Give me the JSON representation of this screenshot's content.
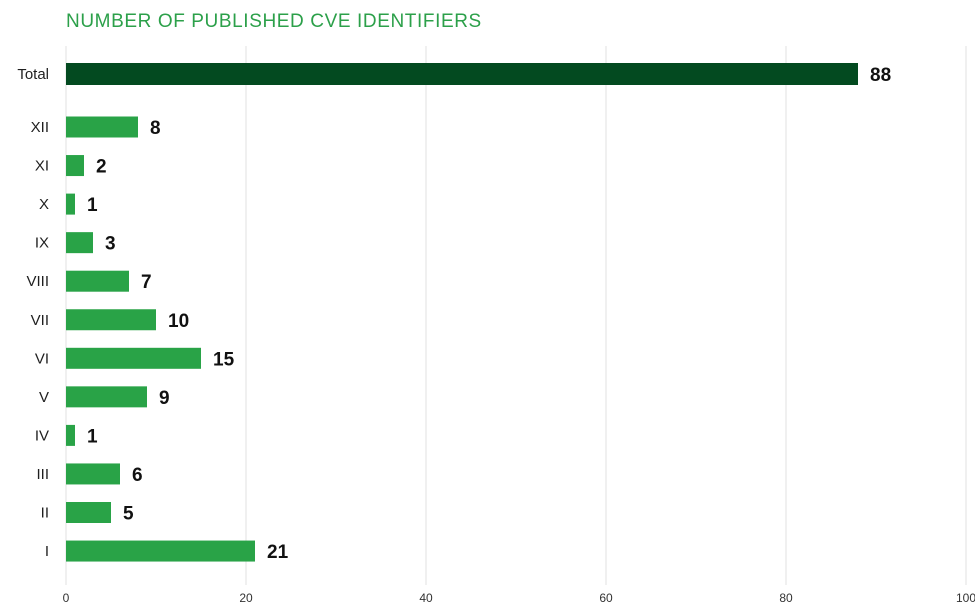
{
  "chart_data": {
    "type": "bar",
    "orientation": "horizontal",
    "title": "NUMBER OF PUBLISHED CVE IDENTIFIERS",
    "categories": [
      "Total",
      "XII",
      "XI",
      "X",
      "IX",
      "VIII",
      "VII",
      "VI",
      "V",
      "IV",
      "III",
      "II",
      "I"
    ],
    "values": [
      88,
      8,
      2,
      1,
      3,
      7,
      10,
      15,
      9,
      1,
      6,
      5,
      21
    ],
    "xlim": [
      0,
      100
    ],
    "xticks": [
      0,
      20,
      40,
      60,
      80,
      100
    ],
    "grid": true,
    "colors": {
      "total_bar": "#034a20",
      "bar": "#29a347",
      "title": "#2ca04a"
    }
  }
}
